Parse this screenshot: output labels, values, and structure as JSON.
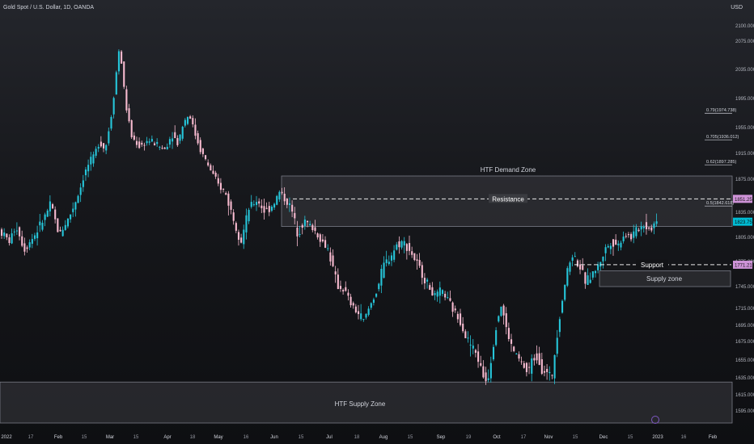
{
  "header": {
    "title": "Gold Spot / U.S. Dollar, 1D, OANDA",
    "currency": "USD"
  },
  "colors": {
    "up": "#26c6da",
    "down": "#f8bbd0",
    "zone_fill": "#3a3b40",
    "zone_border": "#787b86",
    "level_line": "#ffffff",
    "resistance_badge": "#ce93d8",
    "price_badge": "#00bcd4",
    "support_badge": "#ce93d8"
  },
  "chart_data": {
    "type": "candlestick",
    "title": "Gold Spot / U.S. Dollar, 1D, OANDA",
    "y_axis": {
      "unit": "USD",
      "scale": "log",
      "range": [
        1580,
        2110
      ],
      "ticks": [
        "2100.000",
        "2075.000",
        "2035.000",
        "1995.000",
        "1955.000",
        "1915.000",
        "1875.000",
        "1835.000",
        "1805.000",
        "1775.000",
        "1745.000",
        "1715.000",
        "1695.000",
        "1675.000",
        "1655.000",
        "1635.000",
        "1615.000",
        "1595.000"
      ]
    },
    "x_axis": {
      "ticks": [
        "2022",
        "17",
        "Feb",
        "15",
        "Mar",
        "15",
        "Apr",
        "18",
        "May",
        "16",
        "Jun",
        "15",
        "Jul",
        "18",
        "Aug",
        "15",
        "Sep",
        "19",
        "Oct",
        "17",
        "Nov",
        "15",
        "Dec",
        "15",
        "2023",
        "16",
        "Feb"
      ]
    },
    "price_path": [
      [
        0,
        1815
      ],
      [
        14,
        1800
      ],
      [
        22,
        1820
      ],
      [
        32,
        1790
      ],
      [
        45,
        1808
      ],
      [
        55,
        1825
      ],
      [
        65,
        1845
      ],
      [
        75,
        1808
      ],
      [
        88,
        1830
      ],
      [
        100,
        1860
      ],
      [
        110,
        1895
      ],
      [
        118,
        1910
      ],
      [
        125,
        1935
      ],
      [
        132,
        1920
      ],
      [
        140,
        1975
      ],
      [
        150,
        2070
      ],
      [
        157,
        1990
      ],
      [
        165,
        1940
      ],
      [
        175,
        1925
      ],
      [
        185,
        1935
      ],
      [
        195,
        1930
      ],
      [
        205,
        1920
      ],
      [
        215,
        1945
      ],
      [
        222,
        1930
      ],
      [
        228,
        1960
      ],
      [
        236,
        1975
      ],
      [
        242,
        1950
      ],
      [
        250,
        1920
      ],
      [
        260,
        1895
      ],
      [
        270,
        1870
      ],
      [
        280,
        1860
      ],
      [
        290,
        1830
      ],
      [
        300,
        1800
      ],
      [
        310,
        1840
      ],
      [
        320,
        1850
      ],
      [
        330,
        1835
      ],
      [
        340,
        1845
      ],
      [
        348,
        1860
      ],
      [
        355,
        1850
      ],
      [
        362,
        1840
      ],
      [
        370,
        1810
      ],
      [
        378,
        1825
      ],
      [
        390,
        1815
      ],
      [
        400,
        1800
      ],
      [
        408,
        1790
      ],
      [
        415,
        1760
      ],
      [
        420,
        1745
      ],
      [
        428,
        1740
      ],
      [
        436,
        1720
      ],
      [
        444,
        1710
      ],
      [
        452,
        1700
      ],
      [
        460,
        1720
      ],
      [
        468,
        1740
      ],
      [
        476,
        1770
      ],
      [
        484,
        1780
      ],
      [
        492,
        1795
      ],
      [
        500,
        1800
      ],
      [
        508,
        1790
      ],
      [
        516,
        1775
      ],
      [
        524,
        1760
      ],
      [
        532,
        1745
      ],
      [
        540,
        1730
      ],
      [
        548,
        1740
      ],
      [
        556,
        1725
      ],
      [
        564,
        1710
      ],
      [
        572,
        1700
      ],
      [
        578,
        1680
      ],
      [
        585,
        1670
      ],
      [
        592,
        1660
      ],
      [
        598,
        1640
      ],
      [
        604,
        1630
      ],
      [
        610,
        1660
      ],
      [
        616,
        1700
      ],
      [
        622,
        1720
      ],
      [
        628,
        1690
      ],
      [
        634,
        1670
      ],
      [
        640,
        1660
      ],
      [
        648,
        1650
      ],
      [
        654,
        1640
      ],
      [
        660,
        1655
      ],
      [
        666,
        1660
      ],
      [
        672,
        1645
      ],
      [
        678,
        1640
      ],
      [
        684,
        1635
      ],
      [
        690,
        1680
      ],
      [
        696,
        1720
      ],
      [
        702,
        1760
      ],
      [
        710,
        1785
      ],
      [
        718,
        1770
      ],
      [
        726,
        1750
      ],
      [
        734,
        1760
      ],
      [
        742,
        1770
      ],
      [
        750,
        1790
      ],
      [
        758,
        1800
      ],
      [
        766,
        1795
      ],
      [
        774,
        1810
      ],
      [
        782,
        1805
      ],
      [
        790,
        1815
      ],
      [
        798,
        1820
      ],
      [
        806,
        1815
      ],
      [
        812,
        1823
      ]
    ],
    "zones": [
      {
        "label": "HTF Demand Zone",
        "top": 1880,
        "bottom": 1818,
        "x0": 348,
        "x1": 905
      },
      {
        "label": "Supply zone",
        "top": 1764,
        "bottom": 1745,
        "x0": 741,
        "x1": 903
      },
      {
        "label": "HTF Supply Zone",
        "top": 1630,
        "bottom": 1580,
        "x0": 0,
        "x1": 905
      }
    ],
    "levels": [
      {
        "label": "Resistance",
        "price": 1851.255,
        "badge": "1851.255",
        "x0": 362,
        "x1": 904,
        "dashed": true
      },
      {
        "label": "Support",
        "price": 1771.215,
        "badge": "1771.215",
        "x0": 710,
        "x1": 904,
        "dashed": true
      }
    ],
    "current_price": {
      "price": 1823.75,
      "badge": "1823.750"
    },
    "fibs": [
      {
        "label": "0.79(1974.738)",
        "price": 1974.738
      },
      {
        "label": "0.705(1936.012)",
        "price": 1936.012
      },
      {
        "label": "0.62(1897.285)",
        "price": 1897.285
      },
      {
        "label": "0.5(1842.618)",
        "price": 1842.618
      }
    ]
  }
}
